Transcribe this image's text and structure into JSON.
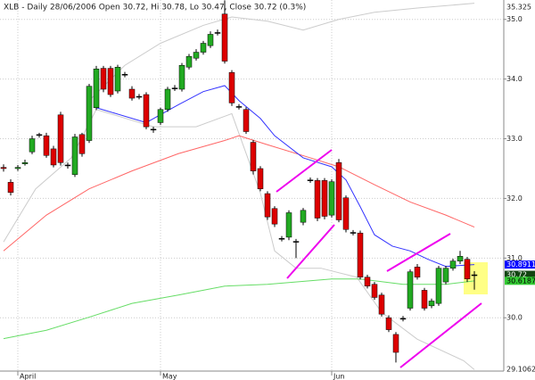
{
  "chart_data": {
    "type": "candlestick",
    "title": "XLB - Daily 28/06/2006 Open 30.72, Hi 30.78, Lo 30.47, Close 30.72 (0.3%)",
    "categories": [
      null,
      null,
      "April",
      null,
      null,
      null,
      null,
      null,
      null,
      null,
      null,
      null,
      null,
      null,
      null,
      null,
      null,
      null,
      null,
      null,
      null,
      null,
      "May",
      null,
      null,
      null,
      null,
      null,
      null,
      null,
      null,
      null,
      null,
      null,
      null,
      null,
      null,
      null,
      null,
      null,
      null,
      null,
      null,
      null,
      null,
      null,
      "Jun",
      null,
      null,
      null,
      null,
      null,
      null,
      null,
      null,
      null,
      null,
      null,
      null,
      null,
      null,
      null,
      null,
      null,
      null,
      null,
      null
    ],
    "open": [
      32.52,
      32.27,
      32.5,
      32.58,
      32.78,
      33.06,
      33.05,
      32.83,
      33.4,
      32.56,
      32.4,
      33.07,
      32.97,
      33.52,
      34.18,
      34.18,
      33.8,
      34.07,
      33.83,
      33.71,
      33.74,
      33.16,
      33.27,
      33.49,
      33.84,
      33.83,
      34.2,
      34.35,
      34.45,
      34.56,
      34.77,
      35.09,
      34.11,
      33.54,
      33.49,
      32.94,
      32.5,
      32.08,
      31.83,
      31.33,
      31.35,
      31.28,
      31.6,
      32.31,
      32.3,
      32.3,
      31.72,
      32.6,
      32.01,
      31.43,
      31.42,
      30.68,
      30.56,
      30.38,
      30.0,
      29.72,
      29.99,
      30.16,
      30.85,
      30.46,
      30.2,
      30.24,
      30.6,
      30.83,
      30.95,
      30.98,
      30.72
    ],
    "high": [
      32.57,
      32.32,
      32.56,
      32.65,
      33.05,
      33.1,
      33.1,
      32.88,
      33.45,
      32.6,
      33.08,
      33.1,
      33.92,
      34.22,
      34.22,
      34.22,
      34.24,
      34.12,
      33.88,
      33.75,
      33.78,
      33.2,
      33.52,
      33.87,
      33.9,
      34.27,
      34.42,
      34.5,
      34.64,
      34.8,
      34.83,
      35.32,
      34.15,
      33.58,
      33.53,
      32.98,
      32.54,
      32.12,
      31.87,
      31.37,
      31.8,
      31.32,
      31.84,
      32.35,
      32.34,
      32.34,
      32.32,
      32.66,
      32.05,
      31.47,
      31.46,
      30.72,
      30.6,
      30.42,
      30.04,
      29.76,
      30.03,
      30.81,
      30.9,
      30.5,
      30.32,
      30.87,
      30.87,
      30.99,
      31.12,
      31.02,
      30.78
    ],
    "low": [
      32.45,
      32.05,
      32.46,
      32.55,
      32.74,
      33.02,
      32.68,
      32.52,
      32.55,
      32.5,
      32.36,
      32.7,
      32.93,
      33.48,
      33.78,
      33.7,
      33.76,
      34.03,
      33.64,
      33.66,
      33.16,
      33.1,
      33.23,
      33.45,
      33.8,
      33.79,
      34.16,
      34.31,
      34.41,
      34.52,
      34.73,
      34.26,
      33.55,
      33.49,
      33.08,
      32.4,
      32.12,
      31.64,
      31.52,
      31.28,
      31.3,
      31.0,
      31.55,
      32.26,
      31.62,
      31.65,
      31.68,
      31.6,
      31.43,
      31.38,
      30.64,
      30.49,
      30.3,
      30.02,
      29.76,
      29.25,
      29.94,
      30.12,
      30.64,
      30.12,
      30.16,
      30.2,
      30.56,
      30.79,
      30.9,
      30.6,
      30.47
    ],
    "close": [
      32.5,
      32.1,
      32.52,
      32.6,
      33.0,
      33.07,
      32.72,
      32.56,
      32.6,
      32.55,
      33.03,
      32.75,
      33.88,
      34.17,
      33.83,
      33.74,
      34.2,
      34.08,
      33.68,
      33.7,
      33.2,
      33.15,
      33.49,
      33.83,
      33.85,
      34.23,
      34.38,
      34.45,
      34.6,
      34.75,
      34.78,
      34.3,
      33.6,
      33.53,
      33.12,
      32.46,
      32.16,
      31.69,
      31.57,
      31.32,
      31.76,
      31.27,
      31.8,
      32.3,
      31.67,
      31.7,
      32.28,
      31.64,
      31.48,
      31.42,
      30.68,
      30.53,
      30.34,
      30.06,
      29.8,
      29.42,
      29.98,
      30.77,
      30.68,
      30.16,
      30.28,
      30.83,
      30.83,
      30.95,
      31.03,
      30.65,
      30.72
    ],
    "up_color": "#22aa22",
    "down_color": "#dd0000",
    "lines": [
      {
        "color": "#cccccc",
        "x": [
          12,
          17,
          22,
          28,
          32,
          37,
          42,
          47,
          52,
          58,
          66
        ],
        "values": [
          33.64,
          34.23,
          34.6,
          34.9,
          35.04,
          34.97,
          34.82,
          35.0,
          35.12,
          35.19,
          35.27
        ]
      },
      {
        "color": "#cccccc",
        "x": [
          0,
          4.5,
          9.5,
          13,
          21,
          27,
          32,
          36,
          38,
          41,
          44.5,
          49.5,
          53,
          58,
          64.5,
          66
        ],
        "values": [
          31.27,
          32.16,
          32.68,
          33.49,
          33.2,
          33.2,
          33.42,
          32.09,
          31.12,
          30.83,
          30.83,
          30.68,
          30.09,
          29.64,
          29.28,
          29.13
        ]
      },
      {
        "color": "#ff6666",
        "x": [
          0,
          6,
          12,
          18,
          24.5,
          31,
          33,
          37,
          43,
          47,
          52,
          57,
          62,
          66
        ],
        "values": [
          31.12,
          31.72,
          32.16,
          32.46,
          32.75,
          32.97,
          33.05,
          32.9,
          32.68,
          32.53,
          32.23,
          31.94,
          31.72,
          31.52
        ]
      },
      {
        "color": "#66dd66",
        "x": [
          0,
          6,
          12,
          18,
          24.5,
          31,
          37,
          46,
          50,
          56,
          62,
          66
        ],
        "values": [
          29.65,
          29.79,
          30.01,
          30.24,
          30.38,
          30.53,
          30.56,
          30.65,
          30.65,
          30.56,
          30.56,
          30.6187
        ]
      },
      {
        "color": "#3333ff",
        "x": [
          13,
          20,
          24.5,
          28,
          31,
          33,
          36,
          38,
          42,
          46,
          48,
          50,
          52,
          54.5,
          57,
          59.5,
          62,
          66
        ],
        "values": [
          33.52,
          33.27,
          33.57,
          33.79,
          33.89,
          33.64,
          33.34,
          33.05,
          32.68,
          32.53,
          32.31,
          31.86,
          31.39,
          31.2,
          31.12,
          30.98,
          30.86,
          30.8911
        ]
      }
    ],
    "price_labels": [
      {
        "value": 30.8911,
        "color": "#0000ff",
        "text_color": "#ffffff"
      },
      {
        "value": 30.72,
        "color": "#114411",
        "text_color": "#ffffff"
      },
      {
        "value": 30.6187,
        "color": "#33cc33",
        "text_color": "#000000"
      }
    ],
    "ylim": [
      29.1062,
      35.325
    ],
    "yticks": [
      {
        "value": 30,
        "label": "30.0"
      },
      {
        "value": 31,
        "label": "31.0"
      },
      {
        "value": 32,
        "label": "32.0"
      },
      {
        "value": 33,
        "label": "33.0"
      },
      {
        "value": 34,
        "label": "34.0"
      },
      {
        "value": 35,
        "label": "35.0"
      }
    ],
    "grid": true
  }
}
